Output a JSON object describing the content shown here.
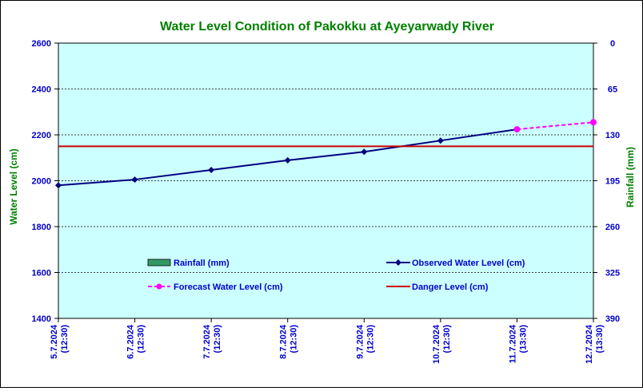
{
  "chart_data": {
    "type": "line",
    "title": "Water Level Condition of Pakokku at Ayeyarwady River",
    "ylabel": "Water Level (cm)",
    "y2label": "Rainfall (mm)",
    "ylim": [
      1400,
      2600
    ],
    "y2lim": [
      390,
      0
    ],
    "yticks": [
      "1400",
      "1600",
      "1800",
      "2000",
      "2200",
      "2400",
      "2600"
    ],
    "y2ticks": [
      "390",
      "325",
      "260",
      "195",
      "130",
      "65",
      "0"
    ],
    "grid": true,
    "categories": [
      {
        "date": "5.7.2024",
        "time": "(12:30)"
      },
      {
        "date": "6.7.2024",
        "time": "(12:30)"
      },
      {
        "date": "7.7.2024",
        "time": "(12:30)"
      },
      {
        "date": "8.7.2024",
        "time": "(12:30)"
      },
      {
        "date": "9.7.2024",
        "time": "(12:30)"
      },
      {
        "date": "10.7.2024",
        "time": "(12:30)"
      },
      {
        "date": "11.7.2024",
        "time": "(13:30)"
      },
      {
        "date": "12.7.2024",
        "time": "(13:30)"
      }
    ],
    "series": [
      {
        "name": "Rainfall (mm)",
        "kind": "bar",
        "values": [
          null,
          null,
          null,
          null,
          null,
          null,
          null,
          null
        ],
        "color": "#339966"
      },
      {
        "name": "Observed Water Level (cm)",
        "kind": "line",
        "values": [
          1980,
          2005,
          2047,
          2089,
          2126,
          2175,
          2224,
          null
        ],
        "color": "#000080"
      },
      {
        "name": "Forecast Water Level (cm)",
        "kind": "dashed-line",
        "values": [
          null,
          null,
          null,
          null,
          null,
          null,
          2224,
          2255
        ],
        "color": "#ff00ff"
      },
      {
        "name": "Danger Level (cm)",
        "kind": "line",
        "values": [
          2150,
          2150,
          2150,
          2150,
          2150,
          2150,
          2150,
          2150
        ],
        "color": "#cc0000"
      }
    ],
    "colors": {
      "plot_background": "#ccffff",
      "title": "#008000",
      "axis_text": "#0000cc",
      "legend_text": "#0000cc",
      "axis_title": "#008000"
    }
  }
}
